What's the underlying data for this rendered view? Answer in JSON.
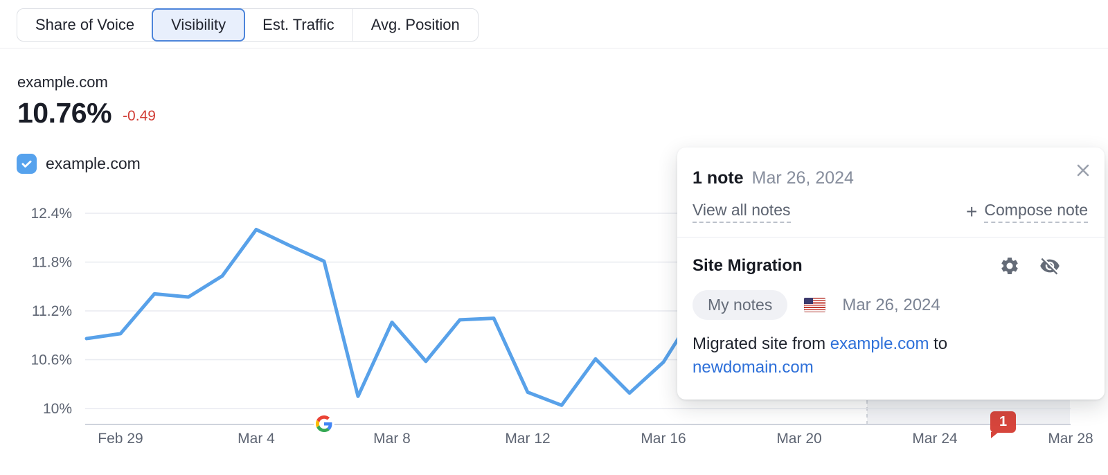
{
  "tabs": [
    {
      "label": "Share of Voice",
      "selected": false
    },
    {
      "label": "Visibility",
      "selected": true
    },
    {
      "label": "Est. Traffic",
      "selected": false
    },
    {
      "label": "Avg. Position",
      "selected": false
    }
  ],
  "summary": {
    "domain": "example.com",
    "value": "10.76%",
    "delta": "-0.49"
  },
  "legend": {
    "label": "example.com",
    "checked": true,
    "color": "#56a2ed"
  },
  "chart_data": {
    "type": "line",
    "title": "Visibility",
    "unit": "%",
    "legend_position": "top-left",
    "grid": true,
    "ylim": [
      9.9,
      12.55
    ],
    "y_ticks": [
      {
        "label": "12.4%",
        "value": 12.4
      },
      {
        "label": "11.8%",
        "value": 11.8
      },
      {
        "label": "11.2%",
        "value": 11.2
      },
      {
        "label": "10.6%",
        "value": 10.6
      },
      {
        "label": "10%",
        "value": 10.0
      }
    ],
    "x_ticks": [
      "Feb 29",
      "Mar 4",
      "Mar 8",
      "Mar 12",
      "Mar 16",
      "Mar 20",
      "Mar 24",
      "Mar 28"
    ],
    "series": [
      {
        "name": "example.com",
        "color": "#58a1e9",
        "points": [
          {
            "date": "Feb 28",
            "value": 10.86
          },
          {
            "date": "Feb 29",
            "value": 10.92
          },
          {
            "date": "Mar 1",
            "value": 11.41
          },
          {
            "date": "Mar 2",
            "value": 11.37
          },
          {
            "date": "Mar 3",
            "value": 11.63
          },
          {
            "date": "Mar 4",
            "value": 12.2
          },
          {
            "date": "Mar 5",
            "value": 12.0
          },
          {
            "date": "Mar 6",
            "value": 11.81
          },
          {
            "date": "Mar 7",
            "value": 10.15
          },
          {
            "date": "Mar 8",
            "value": 11.06
          },
          {
            "date": "Mar 9",
            "value": 10.58
          },
          {
            "date": "Mar 10",
            "value": 11.09
          },
          {
            "date": "Mar 11",
            "value": 11.11
          },
          {
            "date": "Mar 12",
            "value": 10.2
          },
          {
            "date": "Mar 13",
            "value": 10.04
          },
          {
            "date": "Mar 14",
            "value": 10.61
          },
          {
            "date": "Mar 15",
            "value": 10.19
          },
          {
            "date": "Mar 16",
            "value": 10.57
          },
          {
            "date": "Mar 17",
            "value": 11.23
          }
        ]
      }
    ],
    "google_update_marker": {
      "date": "Mar 6"
    },
    "note_marker": {
      "date": "Mar 26",
      "count": "1"
    },
    "highlight_band": {
      "start": "Mar 22",
      "end": "Mar 28"
    }
  },
  "note_panel": {
    "header_title": "1 note",
    "header_date": "Mar 26, 2024",
    "view_all": "View all notes",
    "plus": "+",
    "compose": "Compose note",
    "note": {
      "title": "Site Migration",
      "tag": "My notes",
      "flag": "us-flag",
      "date": "Mar 26, 2024",
      "body_prefix": "Migrated site from ",
      "link_from": "example.com",
      "body_mid": " to",
      "link_to": "newdomain.com"
    }
  }
}
